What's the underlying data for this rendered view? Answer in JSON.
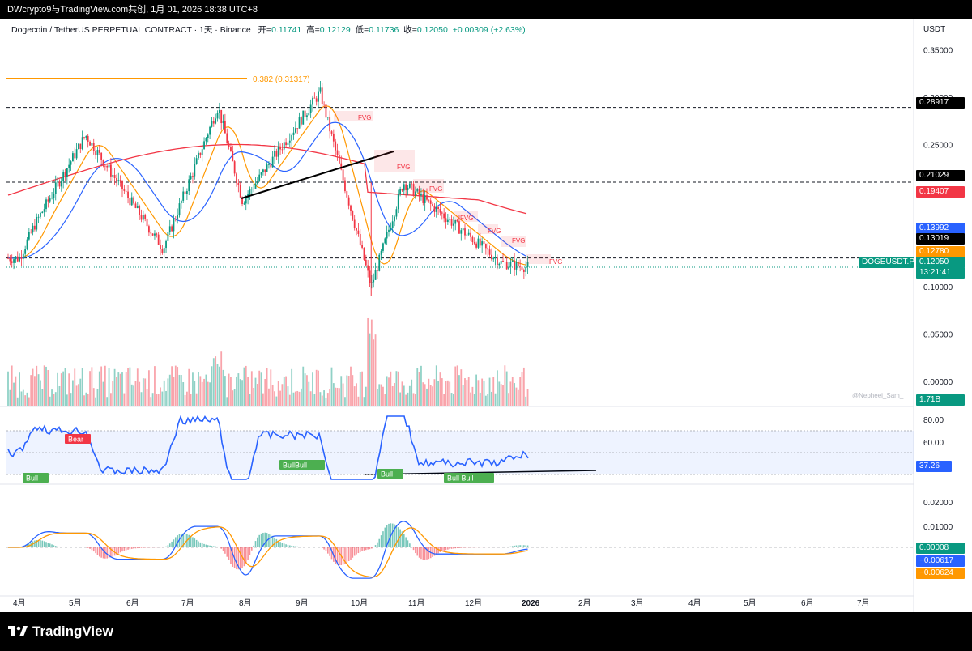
{
  "window": {
    "title": "DWcrypto9与TradingView.com共创, 1月 01, 2026 18:38 UTC+8",
    "brand": "TradingView"
  },
  "legend": {
    "symbol": "Dogecoin / TetherUS PERPETUAL CONTRACT · 1天 · Binance",
    "open_label": "开=",
    "open": "0.11741",
    "high_label": "高=",
    "high": "0.12129",
    "low_label": "低=",
    "low": "0.11736",
    "close_label": "收=",
    "close": "0.12050",
    "change": "+0.00309 (+2.63%)"
  },
  "price_axis": {
    "currency": "USDT",
    "ticks": [
      "0.35000",
      "0.30000",
      "0.25000",
      "0.20000",
      "0.15000",
      "0.10000",
      "0.05000",
      "0.00000"
    ]
  },
  "price_tags": [
    {
      "name": "level-tag-0.28917",
      "text": "0.28917",
      "color": "#000000"
    },
    {
      "name": "level-tag-0.21029",
      "text": "0.21029",
      "color": "#000000"
    },
    {
      "name": "ma-tag-red",
      "text": "0.19407",
      "color": "#f23645"
    },
    {
      "name": "ma-tag-blue",
      "text": "0.13992",
      "color": "#2962ff"
    },
    {
      "name": "level-tag-0.13019",
      "text": "0.13019",
      "color": "#000000"
    },
    {
      "name": "ma-tag-orange",
      "text": "0.12780",
      "color": "#ff9800"
    },
    {
      "name": "last-price-tag",
      "text": "0.12050",
      "color": "#089981"
    },
    {
      "name": "countdown-tag",
      "text": "13:21:41",
      "color": "#089981"
    },
    {
      "name": "volume-tag",
      "text": "1.71B",
      "color": "#089981"
    }
  ],
  "symbol_badge": "DOGEUSDT.P",
  "fib_label": "0.382 (0.31317)",
  "fvg_label": "FVG",
  "watermark": "@Nepheei_Sam_",
  "rsi": {
    "ticks": [
      "80.00",
      "60.00"
    ],
    "value": "37.26",
    "bear_label": "Bear",
    "bull_label": "Bull",
    "bullbull_label": "BullBull",
    "bull_bull_label": "Bull Bull"
  },
  "macd": {
    "ticks": [
      "0.02000",
      "0.01000"
    ],
    "hist": "0.00008",
    "macd": "−0.00617",
    "signal": "−0.00624"
  },
  "time_axis": [
    "4月",
    "5月",
    "6月",
    "7月",
    "8月",
    "9月",
    "10月",
    "11月",
    "12月",
    "2026",
    "2月",
    "3月",
    "4月",
    "5月",
    "6月",
    "7月"
  ],
  "colors": {
    "up": "#089981",
    "down": "#f23645",
    "ma_short": "#ff9800",
    "ma_mid": "#2962ff",
    "ma_long": "#f23645",
    "fib": "#ff9800",
    "rsi_line": "#2962ff"
  },
  "chart_data": {
    "type": "candlestick",
    "symbol": "DOGEUSDT.P",
    "interval": "1D",
    "x_range": [
      "2025-04-01",
      "2026-01-01"
    ],
    "key_points": [
      {
        "date": "2025-04",
        "price": 0.165
      },
      {
        "date": "2025-04-07",
        "price": 0.13
      },
      {
        "date": "2025-05-12",
        "price": 0.26
      },
      {
        "date": "2025-06-22",
        "price": 0.14
      },
      {
        "date": "2025-07-21",
        "price": 0.29
      },
      {
        "date": "2025-08-03",
        "price": 0.19
      },
      {
        "date": "2025-09-13",
        "price": 0.305
      },
      {
        "date": "2025-10-10",
        "price": 0.1
      },
      {
        "date": "2025-10-27",
        "price": 0.21
      },
      {
        "date": "2025-12-18",
        "price": 0.125
      },
      {
        "date": "2026-01-01",
        "price": 0.1205
      }
    ],
    "horizontal_levels": [
      0.28917,
      0.21029,
      0.13019
    ],
    "fib_level": {
      "ratio": 0.382,
      "price": 0.31317
    },
    "moving_averages": [
      {
        "color": "orange",
        "last": 0.1278
      },
      {
        "color": "blue",
        "last": 0.13992
      },
      {
        "color": "red",
        "last": 0.19407
      }
    ],
    "volume_last": "1.71B",
    "rsi_last": 37.26,
    "macd_last": {
      "macd": -0.00617,
      "signal": -0.00624,
      "hist": 8e-05
    },
    "ylim": [
      0.0,
      0.35
    ]
  }
}
